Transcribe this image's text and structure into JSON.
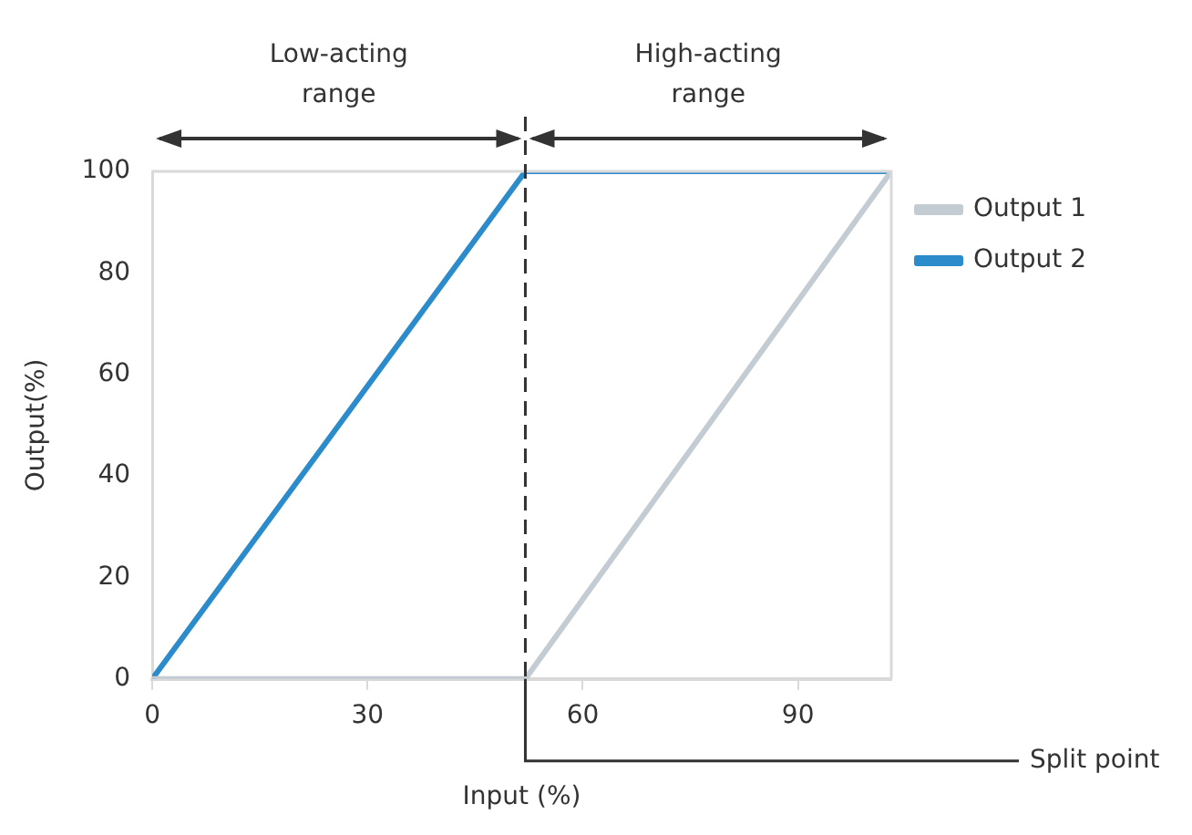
{
  "chart_data": {
    "type": "line",
    "xlabel": "Input (%)",
    "ylabel": "Output(%)",
    "series": [
      {
        "name": "Output 1",
        "color": "#c3cbd3",
        "x": [
          0,
          52,
          103
        ],
        "values": [
          0,
          0,
          100
        ]
      },
      {
        "name": "Output 2",
        "color": "#2b8bcb",
        "x": [
          0,
          52,
          103
        ],
        "values": [
          0,
          100,
          100
        ]
      }
    ],
    "xlim": [
      0,
      103
    ],
    "xticks": [
      0,
      30,
      60,
      90
    ],
    "ylim": [
      0,
      100
    ],
    "yticks": [
      0,
      20,
      40,
      60,
      80,
      100
    ],
    "ref_lines": [
      {
        "axis": "x",
        "value": 52,
        "label": "Split point",
        "color": "#333333",
        "line_style": "dashed"
      }
    ],
    "annotations": [
      "Low-acting range",
      "High-acting range"
    ],
    "grid": false,
    "legend": "right",
    "marker": "none",
    "line_style": "solid"
  }
}
